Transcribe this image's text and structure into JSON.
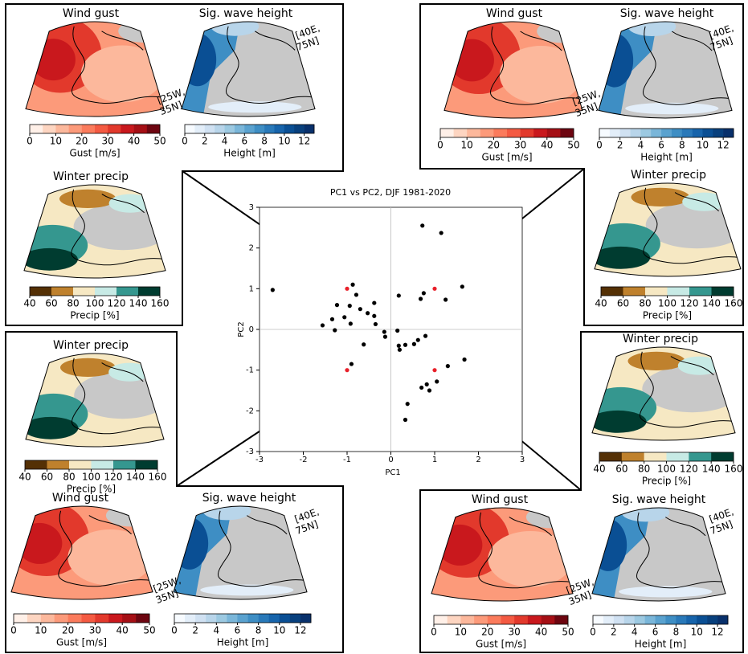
{
  "chart_data": {
    "type": "scatter",
    "title": "PC1 vs PC2, DJF 1981-2020",
    "x_label": "PC1",
    "y_label": "PC2",
    "xlim": [
      -3,
      3
    ],
    "ylim": [
      -3,
      3
    ],
    "xticks": [
      -3,
      -2,
      -1,
      0,
      1,
      2,
      3
    ],
    "yticks": [
      -3,
      -2,
      -1,
      0,
      1,
      2,
      3
    ],
    "series": [
      {
        "color": "#000000",
        "x": [
          -2.7,
          -0.87,
          -0.79,
          -1.23,
          -0.94,
          -0.7,
          -0.53,
          -0.38,
          -0.38,
          -0.35,
          -1.34,
          -1.06,
          -1.56,
          -1.28,
          -0.92,
          -0.62,
          -0.15,
          -0.13,
          0.15,
          0.18,
          0.2,
          0.33,
          0.53,
          0.62,
          0.79,
          0.18,
          0.68,
          0.75,
          0.72,
          1.15,
          1.63,
          1.25,
          1.3,
          1.05,
          1.68,
          0.82,
          0.7,
          0.88,
          0.38,
          0.33,
          -0.9
        ],
        "values": [
          0.97,
          1.1,
          0.85,
          0.6,
          0.58,
          0.5,
          0.4,
          0.65,
          0.33,
          0.13,
          0.25,
          0.3,
          0.1,
          -0.02,
          0.14,
          -0.37,
          -0.06,
          -0.18,
          -0.03,
          -0.4,
          -0.5,
          -0.38,
          -0.36,
          -0.26,
          -0.16,
          0.83,
          0.75,
          0.89,
          2.55,
          2.37,
          1.05,
          0.73,
          -0.9,
          -1.28,
          -0.74,
          -1.35,
          -1.43,
          -1.5,
          -1.83,
          -2.22,
          -0.85
        ]
      },
      {
        "color": "#e8202a",
        "x": [
          -1,
          1,
          1,
          -1
        ],
        "values": [
          1,
          1,
          -1,
          -1
        ]
      }
    ]
  },
  "panels": [
    {
      "maps": [
        {
          "title": "Wind gust",
          "cbar": {
            "label": "Gust [m/s]",
            "lim": [
              0,
              50
            ],
            "ticks": [
              0,
              10,
              20,
              30,
              40,
              50
            ],
            "colors": [
              "#fff0e8",
              "#fdd5c1",
              "#fcb89c",
              "#fc9a7a",
              "#fb7b5c",
              "#f45a42",
              "#e2392c",
              "#c9181d",
              "#a50f15",
              "#6d0510"
            ]
          }
        },
        {
          "title": "Sig. wave height",
          "cbar": {
            "label": "Height [m]",
            "lim": [
              0,
              13
            ],
            "ticks": [
              0,
              2,
              4,
              6,
              8,
              10,
              12
            ],
            "colors": [
              "#f7fbff",
              "#e3eef9",
              "#d0e1f2",
              "#b8d5ea",
              "#9cc9e1",
              "#7ab6d9",
              "#5aa2cf",
              "#3e8ec4",
              "#2979b9",
              "#1764ab",
              "#0a4f94",
              "#08407d",
              "#08306b"
            ]
          }
        },
        {
          "title": "Winter precip",
          "cbar": {
            "label": "Precip [%]",
            "lim": [
              40,
              160
            ],
            "ticks": [
              40,
              60,
              80,
              100,
              120,
              140,
              160
            ],
            "colors": [
              "#543005",
              "#bf812d",
              "#f6e8c3",
              "#c7eae5",
              "#35978f",
              "#003c30"
            ]
          }
        }
      ],
      "corner_sw": [
        "[25W,",
        "35N]"
      ],
      "corner_ne": [
        "[40E,",
        "75N]"
      ]
    },
    {
      "maps": [
        {
          "title": "Wind gust",
          "cbar": {
            "label": "Gust [m/s]",
            "lim": [
              0,
              50
            ],
            "ticks": [
              0,
              10,
              20,
              30,
              40,
              50
            ],
            "colors": [
              "#fff0e8",
              "#fdd5c1",
              "#fcb89c",
              "#fc9a7a",
              "#fb7b5c",
              "#f45a42",
              "#e2392c",
              "#c9181d",
              "#a50f15",
              "#6d0510"
            ]
          }
        },
        {
          "title": "Sig. wave height",
          "cbar": {
            "label": "Height [m]",
            "lim": [
              0,
              13
            ],
            "ticks": [
              0,
              2,
              4,
              6,
              8,
              10,
              12
            ],
            "colors": [
              "#f7fbff",
              "#e3eef9",
              "#d0e1f2",
              "#b8d5ea",
              "#9cc9e1",
              "#7ab6d9",
              "#5aa2cf",
              "#3e8ec4",
              "#2979b9",
              "#1764ab",
              "#0a4f94",
              "#08407d",
              "#08306b"
            ]
          }
        },
        {
          "title": "Winter precip",
          "cbar": {
            "label": "Precip [%]",
            "lim": [
              40,
              160
            ],
            "ticks": [
              40,
              60,
              80,
              100,
              120,
              140,
              160
            ],
            "colors": [
              "#543005",
              "#bf812d",
              "#f6e8c3",
              "#c7eae5",
              "#35978f",
              "#003c30"
            ]
          }
        }
      ],
      "corner_sw": [
        "[25W,",
        "35N]"
      ],
      "corner_ne": [
        "[40E,",
        "75N]"
      ]
    },
    {
      "maps": [
        {
          "title": "Wind gust",
          "cbar": {
            "label": "Gust [m/s]",
            "lim": [
              0,
              50
            ],
            "ticks": [
              0,
              10,
              20,
              30,
              40,
              50
            ],
            "colors": [
              "#fff0e8",
              "#fdd5c1",
              "#fcb89c",
              "#fc9a7a",
              "#fb7b5c",
              "#f45a42",
              "#e2392c",
              "#c9181d",
              "#a50f15",
              "#6d0510"
            ]
          }
        },
        {
          "title": "Sig. wave height",
          "cbar": {
            "label": "Height [m]",
            "lim": [
              0,
              13
            ],
            "ticks": [
              0,
              2,
              4,
              6,
              8,
              10,
              12
            ],
            "colors": [
              "#f7fbff",
              "#e3eef9",
              "#d0e1f2",
              "#b8d5ea",
              "#9cc9e1",
              "#7ab6d9",
              "#5aa2cf",
              "#3e8ec4",
              "#2979b9",
              "#1764ab",
              "#0a4f94",
              "#08407d",
              "#08306b"
            ]
          }
        },
        {
          "title": "Winter precip",
          "cbar": {
            "label": "Precip [%]",
            "lim": [
              40,
              160
            ],
            "ticks": [
              40,
              60,
              80,
              100,
              120,
              140,
              160
            ],
            "colors": [
              "#543005",
              "#bf812d",
              "#f6e8c3",
              "#c7eae5",
              "#35978f",
              "#003c30"
            ]
          }
        }
      ],
      "corner_sw": [
        "[25W,",
        "35N]"
      ],
      "corner_ne": [
        "[40E,",
        "75N]"
      ]
    },
    {
      "maps": [
        {
          "title": "Wind gust",
          "cbar": {
            "label": "Gust [m/s]",
            "lim": [
              0,
              50
            ],
            "ticks": [
              0,
              10,
              20,
              30,
              40,
              50
            ],
            "colors": [
              "#fff0e8",
              "#fdd5c1",
              "#fcb89c",
              "#fc9a7a",
              "#fb7b5c",
              "#f45a42",
              "#e2392c",
              "#c9181d",
              "#a50f15",
              "#6d0510"
            ]
          }
        },
        {
          "title": "Sig. wave height",
          "cbar": {
            "label": "Height [m]",
            "lim": [
              0,
              13
            ],
            "ticks": [
              0,
              2,
              4,
              6,
              8,
              10,
              12
            ],
            "colors": [
              "#f7fbff",
              "#e3eef9",
              "#d0e1f2",
              "#b8d5ea",
              "#9cc9e1",
              "#7ab6d9",
              "#5aa2cf",
              "#3e8ec4",
              "#2979b9",
              "#1764ab",
              "#0a4f94",
              "#08407d",
              "#08306b"
            ]
          }
        },
        {
          "title": "Winter precip",
          "cbar": {
            "label": "Precip [%]",
            "lim": [
              40,
              160
            ],
            "ticks": [
              40,
              60,
              80,
              100,
              120,
              140,
              160
            ],
            "colors": [
              "#543005",
              "#bf812d",
              "#f6e8c3",
              "#c7eae5",
              "#35978f",
              "#003c30"
            ]
          }
        }
      ],
      "corner_sw": [
        "[25W,",
        "35N]"
      ],
      "corner_ne": [
        "[40E,",
        "75N]"
      ]
    }
  ]
}
